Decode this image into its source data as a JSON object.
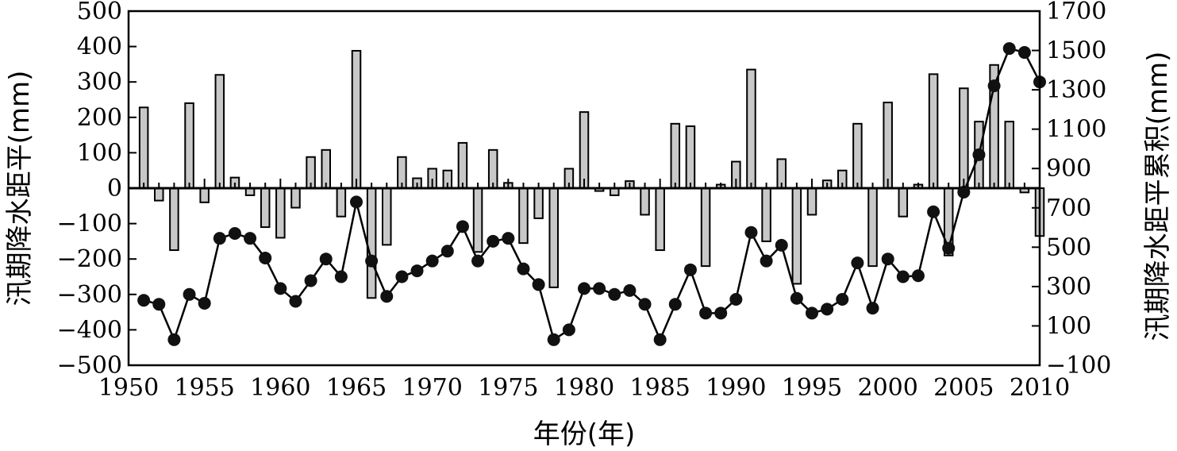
{
  "chart_data": {
    "type": "bar+line",
    "xlabel": "年份(年)",
    "ylabel_left": "汛期降水距平(mm)",
    "ylabel_right": "汛期降水距平累积(mm)",
    "xlim": [
      1950,
      2010
    ],
    "ylim_left": [
      -500,
      500
    ],
    "ylim_right": [
      -100,
      1700
    ],
    "x_ticks": [
      1950,
      1955,
      1960,
      1965,
      1970,
      1975,
      1980,
      1985,
      1990,
      1995,
      2000,
      2005,
      2010
    ],
    "y_ticks_left": [
      -500,
      -400,
      -300,
      -200,
      -100,
      0,
      100,
      200,
      300,
      400,
      500
    ],
    "y_ticks_right": [
      -100,
      100,
      300,
      500,
      700,
      900,
      1100,
      1300,
      1500,
      1700
    ],
    "years": [
      1951,
      1952,
      1953,
      1954,
      1955,
      1956,
      1957,
      1958,
      1959,
      1960,
      1961,
      1962,
      1963,
      1964,
      1965,
      1966,
      1967,
      1968,
      1969,
      1970,
      1971,
      1972,
      1973,
      1974,
      1975,
      1976,
      1977,
      1978,
      1979,
      1980,
      1981,
      1982,
      1983,
      1984,
      1985,
      1986,
      1987,
      1988,
      1989,
      1990,
      1991,
      1992,
      1993,
      1994,
      1995,
      1996,
      1997,
      1998,
      1999,
      2000,
      2001,
      2002,
      2003,
      2004,
      2005,
      2006,
      2007,
      2008,
      2009,
      2010
    ],
    "series": [
      {
        "type": "bar",
        "axis": "left",
        "values": [
          228,
          -35,
          -175,
          240,
          -40,
          320,
          30,
          -20,
          -110,
          -140,
          -55,
          88,
          108,
          -80,
          388,
          -310,
          -160,
          88,
          28,
          55,
          50,
          128,
          -180,
          108,
          15,
          -155,
          -85,
          -280,
          55,
          215,
          -8,
          -20,
          20,
          -75,
          -175,
          182,
          175,
          -220,
          10,
          75,
          335,
          -150,
          82,
          -270,
          -75,
          22,
          50,
          182,
          -220,
          242,
          -80,
          10,
          322,
          -190,
          282,
          188,
          348,
          188,
          -12,
          -135
        ]
      },
      {
        "type": "line",
        "axis": "right",
        "values": [
          230,
          210,
          30,
          260,
          215,
          545,
          570,
          545,
          445,
          290,
          225,
          330,
          440,
          350,
          730,
          430,
          250,
          350,
          380,
          430,
          480,
          605,
          430,
          530,
          545,
          390,
          310,
          30,
          80,
          290,
          290,
          260,
          280,
          210,
          30,
          210,
          385,
          165,
          165,
          235,
          575,
          430,
          510,
          240,
          165,
          185,
          235,
          420,
          190,
          440,
          350,
          355,
          680,
          495,
          780,
          970,
          1320,
          1510,
          1490,
          1340
        ]
      }
    ]
  }
}
